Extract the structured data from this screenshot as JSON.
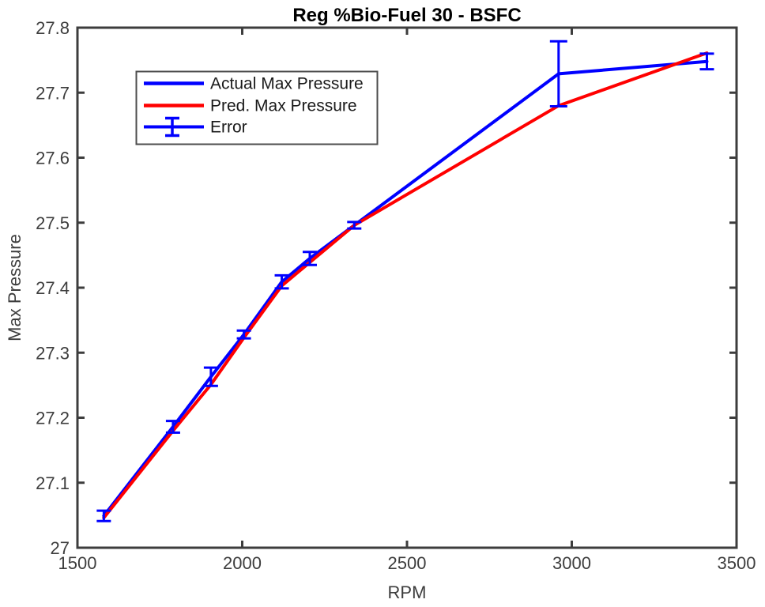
{
  "chart_data": {
    "type": "line",
    "title": "Reg %Bio-Fuel 30 - BSFC",
    "xlabel": "RPM",
    "ylabel": "Max Pressure",
    "xlim": [
      1500,
      3500
    ],
    "ylim": [
      27.0,
      27.8
    ],
    "xticks": [
      1500,
      2000,
      2500,
      3000,
      3500
    ],
    "xtick_labels": [
      "1500",
      "2000",
      "2500",
      "3000",
      "3500"
    ],
    "yticks": [
      27.0,
      27.1,
      27.2,
      27.3,
      27.4,
      27.5,
      27.6,
      27.7,
      27.8
    ],
    "ytick_labels": [
      "27",
      "27.1",
      "27.2",
      "27.3",
      "27.4",
      "27.5",
      "27.6",
      "27.7",
      "27.8"
    ],
    "grid": false,
    "x": [
      1580,
      1790,
      1905,
      2005,
      2120,
      2205,
      2340,
      2960,
      3410
    ],
    "series": [
      {
        "name": "Actual Max Pressure",
        "color": "#0000ff",
        "values": [
          27.049,
          27.186,
          27.263,
          27.328,
          27.409,
          27.445,
          27.496,
          27.729,
          27.748
        ]
      },
      {
        "name": "Pred. Max Pressure",
        "color": "#ff0000",
        "values": [
          27.046,
          27.18,
          27.251,
          27.323,
          27.403,
          27.439,
          27.496,
          27.68,
          27.761
        ]
      }
    ],
    "error": {
      "name": "Error",
      "color": "#0000ff",
      "attached_to": "Actual Max Pressure",
      "values": [
        0.008,
        0.009,
        0.014,
        0.006,
        0.01,
        0.01,
        0.005,
        0.05,
        0.012
      ]
    },
    "legend": {
      "position": "top-left",
      "entries": [
        "Actual Max Pressure",
        "Pred. Max Pressure",
        "Error"
      ]
    }
  },
  "style_colors": {
    "frame": "#3d3d3d",
    "tick_text": "#3d3d3d",
    "legend_border": "#4d4d4d",
    "background": "#ffffff"
  }
}
